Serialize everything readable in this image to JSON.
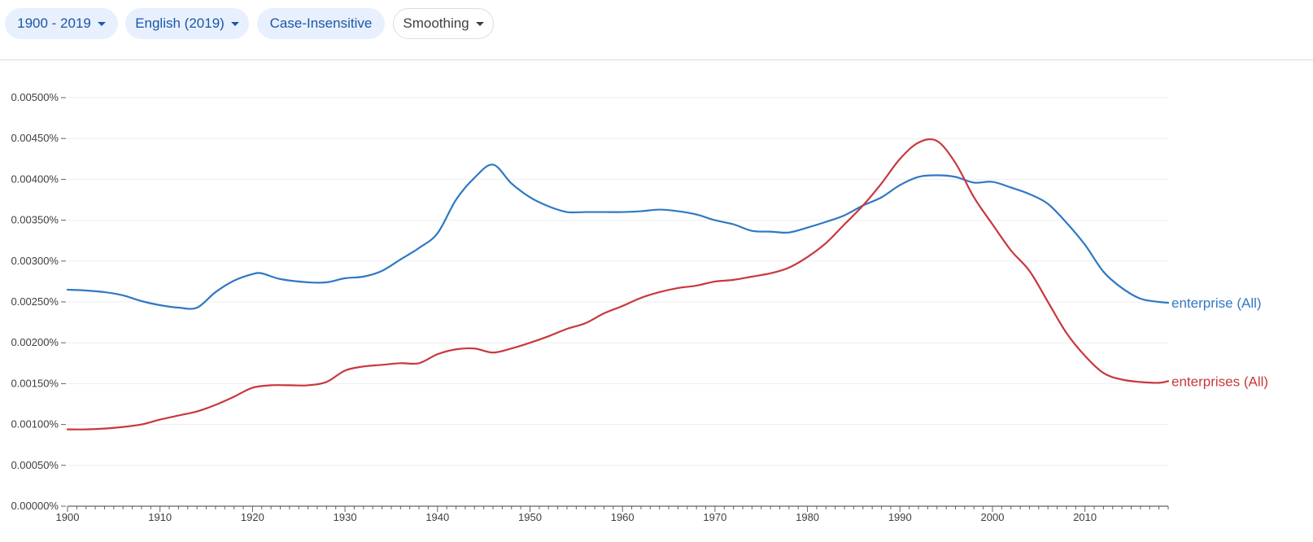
{
  "toolbar": {
    "year_range": "1900 - 2019",
    "corpus": "English (2019)",
    "case": "Case-Insensitive",
    "smoothing": "Smoothing"
  },
  "colors": {
    "enterprise": "#2f78c4",
    "enterprises": "#c9373c",
    "grid": "#eeeeee",
    "axis": "#5f6368",
    "chip_bg": "#e8f0fe",
    "chip_text": "#1a57a6"
  },
  "chart_data": {
    "type": "line",
    "title": "",
    "xlabel": "",
    "ylabel": "",
    "xlim": [
      1900,
      2019
    ],
    "ylim": [
      0,
      0.005
    ],
    "x_ticks": [
      1900,
      1910,
      1920,
      1930,
      1940,
      1950,
      1960,
      1970,
      1980,
      1990,
      2000,
      2010
    ],
    "y_ticks": [
      {
        "value": 0,
        "label": "0.00000%"
      },
      {
        "value": 0.0005,
        "label": "0.00050%"
      },
      {
        "value": 0.001,
        "label": "0.00100%"
      },
      {
        "value": 0.0015,
        "label": "0.00150%"
      },
      {
        "value": 0.002,
        "label": "0.00200%"
      },
      {
        "value": 0.0025,
        "label": "0.00250%"
      },
      {
        "value": 0.003,
        "label": "0.00300%"
      },
      {
        "value": 0.0035,
        "label": "0.00350%"
      },
      {
        "value": 0.004,
        "label": "0.00400%"
      },
      {
        "value": 0.0045,
        "label": "0.00450%"
      },
      {
        "value": 0.005,
        "label": "0.00500%"
      }
    ],
    "grid": true,
    "series": [
      {
        "name": "enterprise (All)",
        "color": "#2f78c4",
        "x": [
          1900,
          1902,
          1904,
          1906,
          1908,
          1910,
          1912,
          1914,
          1916,
          1918,
          1920,
          1921,
          1923,
          1926,
          1928,
          1930,
          1932,
          1934,
          1936,
          1938,
          1940,
          1942,
          1944,
          1946,
          1948,
          1950,
          1952,
          1954,
          1956,
          1958,
          1960,
          1962,
          1964,
          1966,
          1968,
          1970,
          1972,
          1974,
          1976,
          1978,
          1980,
          1982,
          1984,
          1986,
          1988,
          1990,
          1992,
          1994,
          1996,
          1998,
          2000,
          2002,
          2004,
          2006,
          2008,
          2010,
          2012,
          2014,
          2016,
          2018,
          2019
        ],
        "values": [
          0.00265,
          0.00264,
          0.00262,
          0.00258,
          0.00251,
          0.00246,
          0.00243,
          0.00243,
          0.00262,
          0.00276,
          0.00284,
          0.00285,
          0.00278,
          0.00274,
          0.00274,
          0.00279,
          0.00281,
          0.00288,
          0.00302,
          0.00316,
          0.00334,
          0.00375,
          0.00402,
          0.00418,
          0.00395,
          0.00378,
          0.00367,
          0.0036,
          0.0036,
          0.0036,
          0.0036,
          0.00361,
          0.00363,
          0.00361,
          0.00357,
          0.0035,
          0.00345,
          0.00337,
          0.00336,
          0.00335,
          0.00341,
          0.00348,
          0.00356,
          0.00368,
          0.00378,
          0.00393,
          0.00403,
          0.00405,
          0.00403,
          0.00396,
          0.00397,
          0.0039,
          0.00382,
          0.0037,
          0.00347,
          0.0032,
          0.00287,
          0.00267,
          0.00254,
          0.0025,
          0.00249
        ]
      },
      {
        "name": "enterprises (All)",
        "color": "#c9373c",
        "x": [
          1900,
          1902,
          1904,
          1906,
          1908,
          1910,
          1912,
          1914,
          1916,
          1918,
          1920,
          1922,
          1924,
          1926,
          1928,
          1930,
          1932,
          1934,
          1936,
          1938,
          1940,
          1942,
          1944,
          1946,
          1948,
          1950,
          1952,
          1954,
          1956,
          1958,
          1960,
          1962,
          1964,
          1966,
          1968,
          1970,
          1972,
          1974,
          1976,
          1978,
          1980,
          1982,
          1984,
          1986,
          1988,
          1990,
          1992,
          1994,
          1996,
          1998,
          2000,
          2002,
          2004,
          2006,
          2008,
          2010,
          2012,
          2014,
          2016,
          2018,
          2019
        ],
        "values": [
          0.00094,
          0.00094,
          0.00095,
          0.00097,
          0.001,
          0.00106,
          0.00111,
          0.00116,
          0.00124,
          0.00134,
          0.00145,
          0.00148,
          0.00148,
          0.00148,
          0.00152,
          0.00166,
          0.00171,
          0.00173,
          0.00175,
          0.00175,
          0.00186,
          0.00192,
          0.00193,
          0.00188,
          0.00193,
          0.002,
          0.00208,
          0.00217,
          0.00224,
          0.00236,
          0.00245,
          0.00255,
          0.00262,
          0.00267,
          0.0027,
          0.00275,
          0.00277,
          0.00281,
          0.00285,
          0.00292,
          0.00305,
          0.00322,
          0.00345,
          0.00368,
          0.00395,
          0.00425,
          0.00445,
          0.00447,
          0.0042,
          0.00378,
          0.00345,
          0.00313,
          0.00288,
          0.0025,
          0.00212,
          0.00184,
          0.00163,
          0.00155,
          0.00152,
          0.00151,
          0.00153
        ]
      }
    ]
  }
}
